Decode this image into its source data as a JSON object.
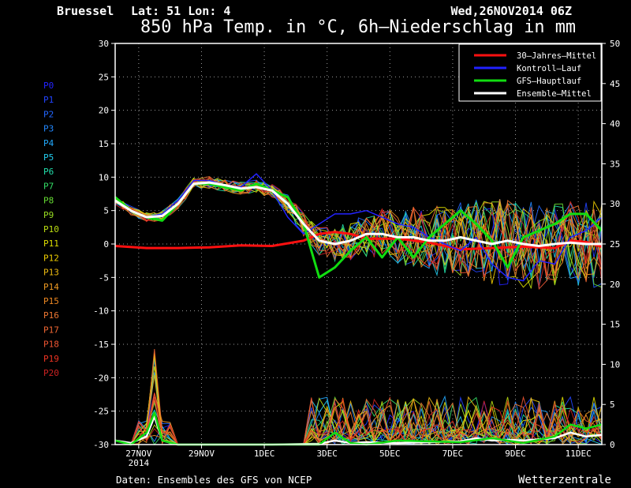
{
  "header": {
    "location": "Bruessel",
    "lat_lon": "Lat: 51 Lon: 4",
    "run": "Wed,26NOV2014 06Z",
    "title": "850 hPa Temp. in °C, 6h–Niederschlag in mm"
  },
  "footer": {
    "source": "Daten: Ensembles des GFS von NCEP",
    "brand": "Wetterzentrale"
  },
  "colors": {
    "background": "#000000",
    "grid": "#9a9a9a",
    "frame": "#ffffff",
    "climate": "#ff1010",
    "control": "#2222ff",
    "operational": "#11dd11",
    "mean": "#ffffff"
  },
  "chart_data": {
    "type": "line",
    "title": "850 hPa Temp. in °C, 6h–Niederschlag in mm",
    "left_axis": {
      "unit": "°C",
      "ylim": [
        -30,
        30
      ],
      "ticks": [
        30,
        25,
        20,
        15,
        10,
        5,
        0,
        -5,
        -10,
        -15,
        -20,
        -25,
        -30
      ]
    },
    "right_axis": {
      "unit": "mm",
      "ylim": [
        0,
        50
      ],
      "ticks": [
        50,
        45,
        40,
        35,
        30,
        25,
        20,
        15,
        10,
        5,
        0
      ]
    },
    "x_axis": {
      "unit": "days since 26NOV2014 06Z",
      "range": [
        0,
        15.5
      ],
      "ticks": [
        {
          "x": 0.75,
          "label": "27NOV",
          "label2": "2014"
        },
        {
          "x": 2.75,
          "label": "29NOV"
        },
        {
          "x": 4.75,
          "label": "1DEC"
        },
        {
          "x": 6.75,
          "label": "3DEC"
        },
        {
          "x": 8.75,
          "label": "5DEC"
        },
        {
          "x": 10.75,
          "label": "7DEC"
        },
        {
          "x": 12.75,
          "label": "9DEC"
        },
        {
          "x": 14.75,
          "label": "11DEC"
        }
      ]
    },
    "grid": true,
    "legend_position": "top-right",
    "legend": [
      {
        "label": "30–Jahres–Mittel",
        "color": "#ff1010"
      },
      {
        "label": "Kontroll–Lauf",
        "color": "#2222ff"
      },
      {
        "label": "GFS–Hauptlauf",
        "color": "#11dd11"
      },
      {
        "label": "Ensemble–Mittel",
        "color": "#ffffff"
      }
    ],
    "members": [
      {
        "name": "P0",
        "color": "#2222ff"
      },
      {
        "name": "P1",
        "color": "#2244ff"
      },
      {
        "name": "P2",
        "color": "#2266ff"
      },
      {
        "name": "P3",
        "color": "#2288ff"
      },
      {
        "name": "P4",
        "color": "#22aaff"
      },
      {
        "name": "P5",
        "color": "#22ccee"
      },
      {
        "name": "P6",
        "color": "#22ddaa"
      },
      {
        "name": "P7",
        "color": "#33dd66"
      },
      {
        "name": "P8",
        "color": "#66dd33"
      },
      {
        "name": "P9",
        "color": "#99dd22"
      },
      {
        "name": "P10",
        "color": "#bbdd11"
      },
      {
        "name": "P11",
        "color": "#dddd00"
      },
      {
        "name": "P12",
        "color": "#eecc00"
      },
      {
        "name": "P13",
        "color": "#eebb11"
      },
      {
        "name": "P14",
        "color": "#ee9922"
      },
      {
        "name": "P15",
        "color": "#ee8822"
      },
      {
        "name": "P16",
        "color": "#ee7733"
      },
      {
        "name": "P17",
        "color": "#ee6633"
      },
      {
        "name": "P18",
        "color": "#ee5533"
      },
      {
        "name": "P19",
        "color": "#ee3322"
      },
      {
        "name": "P20",
        "color": "#cc2222"
      }
    ],
    "series": [
      {
        "name": "30–Jahres–Mittel",
        "axis": "left",
        "x": [
          0,
          1,
          2,
          3,
          4,
          5,
          6,
          6.5,
          7,
          7.5,
          8,
          9,
          10,
          11,
          12,
          13,
          14,
          14.5,
          15,
          15.5
        ],
        "values": [
          -0.3,
          -0.6,
          -0.6,
          -0.5,
          -0.2,
          -0.3,
          0.5,
          1.5,
          1.8,
          1.5,
          0.8,
          0.8,
          0.2,
          -0.8,
          -0.6,
          -0.4,
          -0.6,
          0.5,
          0.3,
          -0.4
        ]
      },
      {
        "name": "Kontroll–Lauf",
        "axis": "left",
        "x": [
          0,
          0.5,
          1,
          1.5,
          2,
          2.5,
          3,
          3.5,
          4,
          4.5,
          5,
          5.5,
          6,
          6.5,
          7,
          7.5,
          8,
          8.5,
          9,
          9.5,
          10,
          10.5,
          11,
          11.5,
          12,
          12.5,
          13,
          13.5,
          14,
          14.5,
          15,
          15.5
        ],
        "values": [
          6.5,
          5,
          4,
          4.5,
          6.5,
          9.5,
          9.5,
          8.8,
          8.5,
          10.5,
          8,
          4,
          1.5,
          3,
          4.5,
          4.5,
          5,
          4,
          3,
          2.5,
          1,
          0,
          -1,
          1,
          -3,
          -5,
          -5.5,
          -2.5,
          -3,
          1,
          2,
          4
        ]
      },
      {
        "name": "GFS–Hauptlauf",
        "axis": "left",
        "x": [
          0,
          0.5,
          1,
          1.5,
          2,
          2.5,
          3,
          3.5,
          4,
          4.5,
          5,
          5.5,
          6,
          6.5,
          7,
          7.5,
          8,
          8.5,
          9,
          9.5,
          10,
          10.5,
          11,
          11.5,
          12,
          12.5,
          13,
          13.5,
          14,
          14.5,
          15,
          15.5
        ],
        "values": [
          7,
          5,
          4,
          3.5,
          6,
          9,
          9,
          8.5,
          8,
          9,
          8,
          7,
          3,
          -5,
          -3.5,
          -1,
          1,
          -2,
          1,
          -2,
          1,
          3,
          5,
          3,
          0.5,
          -3.5,
          1,
          2,
          3,
          4.5,
          4.5,
          2
        ]
      },
      {
        "name": "Ensemble–Mittel",
        "axis": "left",
        "x": [
          0,
          0.5,
          1,
          1.5,
          2,
          2.5,
          3,
          3.5,
          4,
          4.5,
          5,
          5.5,
          6,
          6.5,
          7,
          7.5,
          8,
          8.5,
          9,
          9.5,
          10,
          10.5,
          11,
          11.5,
          12,
          12.5,
          13,
          13.5,
          14,
          14.5,
          15,
          15.5
        ],
        "values": [
          6.5,
          5,
          4,
          4.2,
          6,
          9,
          9.2,
          8.8,
          8.3,
          8.5,
          8,
          6,
          3,
          0.5,
          0,
          0.5,
          1.5,
          1.5,
          1,
          1,
          0.5,
          0.5,
          1,
          0.5,
          0,
          0.5,
          0,
          -0.3,
          0,
          0.2,
          0,
          0
        ]
      }
    ],
    "precip_series": [
      {
        "name": "Ensemble–Mittel",
        "axis": "right",
        "x": [
          0,
          0.5,
          1,
          1.25,
          1.5,
          2,
          5,
          6.5,
          7,
          7.5,
          8,
          9,
          10,
          11,
          11.5,
          12,
          12.5,
          13,
          14,
          14.5,
          15,
          15.5
        ],
        "values": [
          0.5,
          0.2,
          1,
          3.5,
          0.5,
          0,
          0,
          0.1,
          0.5,
          0.2,
          0.3,
          0.2,
          0.3,
          0.4,
          0.8,
          0.5,
          0.6,
          0.5,
          0.8,
          1.5,
          1,
          1.2
        ]
      },
      {
        "name": "GFS–Hauptlauf",
        "axis": "right",
        "x": [
          0,
          0.5,
          1,
          1.25,
          1.5,
          2,
          6.5,
          7,
          7.5,
          8,
          9,
          11,
          12,
          13,
          14,
          14.5,
          15,
          15.5
        ],
        "values": [
          0.5,
          0,
          1.5,
          4,
          0.5,
          0,
          0,
          1.5,
          0.2,
          0,
          0.5,
          0.3,
          0.8,
          0.2,
          1,
          2.5,
          2,
          2.5
        ]
      }
    ]
  }
}
